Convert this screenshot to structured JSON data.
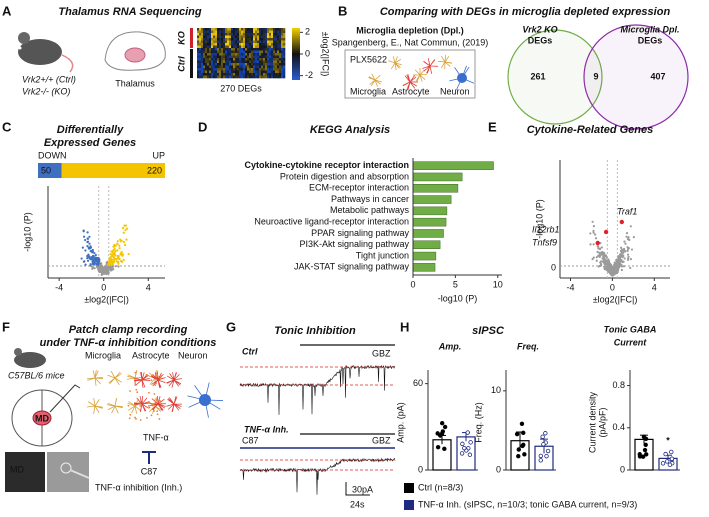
{
  "panels": {
    "A": {
      "letter": "A",
      "title": "Thalamus RNA Sequencing",
      "genotypes": [
        "Vrk2+/+ (Ctrl)",
        "Vrk2-/- (KO)"
      ],
      "region": "Thalamus",
      "groups": [
        "KO",
        "Ctrl"
      ],
      "deg_count": "270 DEGs",
      "colorbar": {
        "label": "±log2(|FC|)",
        "ticks": [
          2,
          0,
          -2
        ],
        "lim": [
          -2.4,
          2.4
        ]
      }
    },
    "B": {
      "letter": "B",
      "title": "Comparing with DEGs in microglia depleted expression",
      "subtitle": "Microglia depletion (Dpl.)",
      "citation": "Spangenberg, E., Nat Commun, (2019)",
      "drug": "PLX5622",
      "cells": [
        "Microglia",
        "Astrocyte",
        "Neuron"
      ],
      "cell_colors": [
        "#d9a23a",
        "#e0403a",
        "#3a6fd0"
      ],
      "venn": {
        "sets": [
          {
            "label": [
              "Vrk2 KO",
              "DEGs"
            ],
            "color": "#70ad47",
            "only": 261
          },
          {
            "label": [
              "Microglia Dpl.",
              "DEGs"
            ],
            "color": "#8e2ca8",
            "only": 407
          }
        ],
        "overlap": 9
      }
    },
    "C": {
      "letter": "C",
      "title": [
        "Differentially",
        "Expressed Genes"
      ],
      "down": {
        "label": "DOWN",
        "count": 50,
        "color": "#3f6fc0"
      },
      "up": {
        "label": "UP",
        "count": 220,
        "color": "#f5c400"
      },
      "volcano": {
        "ylabel": "-log10 (P)",
        "xlabel": "±log2(|FC|)",
        "xticks": [
          -4,
          0,
          4
        ],
        "xlim": [
          -5,
          5.5
        ]
      }
    },
    "E": {
      "letter": "E",
      "title": "Cytokine-Related Genes",
      "genes": [
        "Il12rb1",
        "Tnfsf9",
        "Traf1"
      ],
      "gene_color": "#e0202a",
      "volcano": {
        "ylabel": "-log10 (P)",
        "xlabel": "±log2(|FC|)",
        "xticks": [
          -4,
          0,
          4
        ],
        "xlim": [
          -5,
          5.5
        ],
        "yticks": [
          0
        ]
      }
    },
    "F": {
      "letter": "F",
      "title": [
        "Patch clamp recording",
        "under TNF-α inhibition conditions"
      ],
      "strain": "C57BL/6 mice",
      "region": "MD",
      "cells": [
        "Microglia",
        "Astrocyte",
        "Neuron"
      ],
      "cytokine": "TNF-α",
      "inhibitor": "C87",
      "caption": "TNF-α inhibition (Inh.)",
      "image_label": "MD"
    },
    "G": {
      "letter": "G",
      "title": "Tonic Inhibition",
      "traces": [
        {
          "label": "Ctrl",
          "drug": "GBZ"
        },
        {
          "label": "TNF-α Inh.",
          "inhibitor": "C87",
          "drug": "GBZ"
        }
      ],
      "scale": [
        "30pA",
        "24s"
      ]
    },
    "H": {
      "letter": "H",
      "title": "sIPSC",
      "legend": [
        "Ctrl (n=8/3)",
        "TNF-α Inh. (sIPSC, n=10/3; tonic GABA current, n=9/3)"
      ],
      "legend_colors": [
        "#000000",
        "#1f2a80"
      ]
    }
  },
  "chart_data": [
    {
      "type": "barh",
      "title": "KEGG Analysis",
      "letter": "D",
      "categories": [
        "Cytokine-cytokine receptor interaction",
        "Protein digestion and absorption",
        "ECM-receptor interaction",
        "Pathways in cancer",
        "Metabolic pathways",
        "Neuroactive ligand-receptor interaction",
        "PPAR signaling pathway",
        "PI3K-Akt signaling pathway",
        "Tight junction",
        "JAK-STAT signaling pathway"
      ],
      "values": [
        9.5,
        5.8,
        5.3,
        4.5,
        4.0,
        3.9,
        3.6,
        3.2,
        2.7,
        2.6
      ],
      "color": "#70ad47",
      "highlight_index": 0,
      "highlight_color": "#5a9a2e",
      "xlabel": "-log10 (P)",
      "xlim": [
        0,
        10.5
      ],
      "xticks": [
        0,
        5,
        10
      ]
    },
    {
      "type": "bar",
      "title": [
        "Amp."
      ],
      "ylabel": [
        "Amp. (pA)"
      ],
      "values": [
        21,
        23
      ],
      "errors": [
        3,
        3
      ],
      "colors": [
        "#000000",
        "#1f2a80"
      ],
      "ylim": [
        0,
        66
      ],
      "yticks": [
        0,
        60
      ]
    },
    {
      "type": "bar",
      "title": [
        "Freq."
      ],
      "ylabel": [
        "Freq. (Hz)"
      ],
      "values": [
        3.7,
        3.0
      ],
      "errors": [
        1.1,
        0.9
      ],
      "colors": [
        "#000000",
        "#1f2a80"
      ],
      "ylim": [
        0,
        12
      ],
      "yticks": [
        0,
        10
      ]
    },
    {
      "type": "bar",
      "title": [
        "Tonic GABA",
        "Current"
      ],
      "ylabel": [
        "Current density",
        "(pA/pF)"
      ],
      "values": [
        0.29,
        0.11
      ],
      "errors": [
        0.04,
        0.03
      ],
      "colors": [
        "#000000",
        "#1f2a80"
      ],
      "ylim": [
        0,
        0.9
      ],
      "yticks": [
        0,
        0.4,
        0.8
      ],
      "annotation": "*"
    }
  ]
}
